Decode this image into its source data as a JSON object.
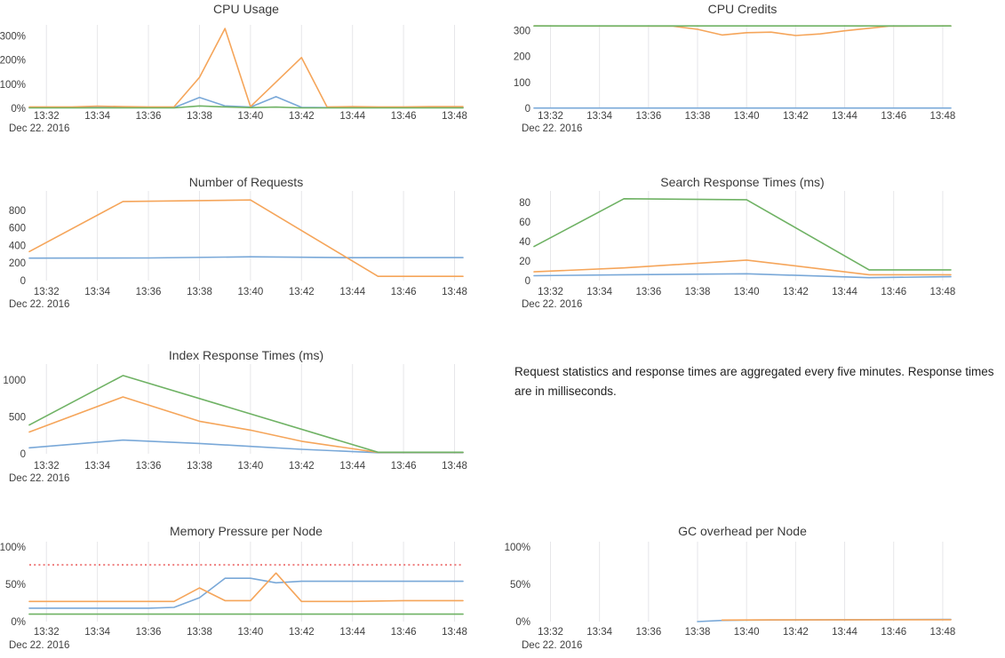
{
  "date_label": "Dec 22. 2016",
  "note": {
    "text": "Request statistics and response times are aggregated every five minutes. Response times are in milliseconds."
  },
  "palette": {
    "blue": "#79a8d8",
    "orange": "#f5a55a",
    "green": "#6fb264",
    "threshold": "#ee7d7d",
    "grid": "#e6e6e9",
    "tick_text": "#404040",
    "title_text": "#3a3a3a"
  },
  "x_axis": {
    "xlim": [
      31.33,
      48.33
    ],
    "ticks": [
      {
        "v": 32,
        "label": "13:32"
      },
      {
        "v": 34,
        "label": "13:34"
      },
      {
        "v": 36,
        "label": "13:36"
      },
      {
        "v": 38,
        "label": "13:38"
      },
      {
        "v": 40,
        "label": "13:40"
      },
      {
        "v": 42,
        "label": "13:42"
      },
      {
        "v": 44,
        "label": "13:44"
      },
      {
        "v": 46,
        "label": "13:46"
      },
      {
        "v": 48,
        "label": "13:48"
      }
    ]
  },
  "chart_data": [
    {
      "id": "cpu-usage",
      "type": "line",
      "title": "CPU Usage",
      "ylim": [
        0,
        345
      ],
      "yticks": [
        {
          "v": 0,
          "label": "0%"
        },
        {
          "v": 100,
          "label": "100%"
        },
        {
          "v": 200,
          "label": "200%"
        },
        {
          "v": 300,
          "label": "300%"
        }
      ],
      "series": [
        {
          "name": "node-blue",
          "color": "blue",
          "points": [
            [
              31.33,
              3
            ],
            [
              33,
              3
            ],
            [
              34,
              4
            ],
            [
              35,
              3
            ],
            [
              36,
              3
            ],
            [
              37,
              3
            ],
            [
              38,
              45
            ],
            [
              39,
              10
            ],
            [
              40,
              5
            ],
            [
              41,
              48
            ],
            [
              42,
              4
            ],
            [
              43,
              3
            ],
            [
              45,
              3
            ],
            [
              48.33,
              3
            ]
          ]
        },
        {
          "name": "node-orange",
          "color": "orange",
          "points": [
            [
              31.33,
              6
            ],
            [
              33,
              6
            ],
            [
              34,
              9
            ],
            [
              35,
              7
            ],
            [
              36,
              6
            ],
            [
              37,
              6
            ],
            [
              38,
              128
            ],
            [
              39,
              330
            ],
            [
              40,
              7
            ],
            [
              42,
              210
            ],
            [
              43,
              6
            ],
            [
              44,
              7
            ],
            [
              45,
              6
            ],
            [
              46,
              6
            ],
            [
              47,
              7
            ],
            [
              48.33,
              7
            ]
          ]
        },
        {
          "name": "node-green",
          "color": "green",
          "points": [
            [
              31.33,
              2
            ],
            [
              37,
              2
            ],
            [
              38,
              10
            ],
            [
              39,
              6
            ],
            [
              40,
              3
            ],
            [
              41,
              5
            ],
            [
              42,
              2
            ],
            [
              48.33,
              2
            ]
          ]
        }
      ]
    },
    {
      "id": "cpu-credits",
      "type": "line",
      "title": "CPU Credits",
      "ylim": [
        0,
        322
      ],
      "yticks": [
        {
          "v": 0,
          "label": "0"
        },
        {
          "v": 100,
          "label": "100"
        },
        {
          "v": 200,
          "label": "200"
        },
        {
          "v": 300,
          "label": "300"
        }
      ],
      "series": [
        {
          "name": "node-blue",
          "color": "blue",
          "points": [
            [
              31.33,
              1
            ],
            [
              48.33,
              1
            ]
          ]
        },
        {
          "name": "node-orange",
          "color": "orange",
          "points": [
            [
              31.33,
              318
            ],
            [
              37,
              317
            ],
            [
              38,
              305
            ],
            [
              39,
              283
            ],
            [
              40,
              292
            ],
            [
              41,
              294
            ],
            [
              42,
              281
            ],
            [
              43,
              287
            ],
            [
              44,
              299
            ],
            [
              45,
              309
            ],
            [
              45.8,
              317
            ],
            [
              48.33,
              318
            ]
          ]
        },
        {
          "name": "node-green",
          "color": "green",
          "points": [
            [
              31.33,
              318
            ],
            [
              48.33,
              318
            ]
          ]
        }
      ]
    },
    {
      "id": "requests",
      "type": "line",
      "title": "Number of Requests",
      "ylim": [
        0,
        1020
      ],
      "yticks": [
        {
          "v": 0,
          "label": "0"
        },
        {
          "v": 200,
          "label": "200"
        },
        {
          "v": 400,
          "label": "400"
        },
        {
          "v": 600,
          "label": "600"
        },
        {
          "v": 800,
          "label": "800"
        }
      ],
      "series": [
        {
          "name": "requests-blue",
          "color": "blue",
          "points": [
            [
              31.33,
              256
            ],
            [
              36,
              258
            ],
            [
              40,
              271
            ],
            [
              44,
              261
            ],
            [
              48.33,
              262
            ]
          ]
        },
        {
          "name": "requests-orange",
          "color": "orange",
          "points": [
            [
              31.33,
              330
            ],
            [
              35,
              900
            ],
            [
              40,
              917
            ],
            [
              45,
              48
            ],
            [
              48.33,
              48
            ]
          ]
        }
      ]
    },
    {
      "id": "search-response",
      "type": "line",
      "title": "Search Response Times (ms)",
      "ylim": [
        0,
        92
      ],
      "yticks": [
        {
          "v": 0,
          "label": "0"
        },
        {
          "v": 20,
          "label": "20"
        },
        {
          "v": 40,
          "label": "40"
        },
        {
          "v": 60,
          "label": "60"
        },
        {
          "v": 80,
          "label": "80"
        }
      ],
      "series": [
        {
          "name": "search-blue",
          "color": "blue",
          "points": [
            [
              31.33,
              5
            ],
            [
              35,
              6
            ],
            [
              40,
              7
            ],
            [
              45,
              3
            ],
            [
              48.33,
              4
            ]
          ]
        },
        {
          "name": "search-orange",
          "color": "orange",
          "points": [
            [
              31.33,
              9
            ],
            [
              35,
              13
            ],
            [
              40,
              21
            ],
            [
              45,
              6
            ],
            [
              48.33,
              6
            ]
          ]
        },
        {
          "name": "search-green",
          "color": "green",
          "points": [
            [
              31.33,
              35
            ],
            [
              35,
              84
            ],
            [
              40,
              83
            ],
            [
              45,
              11
            ],
            [
              48.33,
              11
            ]
          ]
        }
      ]
    },
    {
      "id": "index-response",
      "type": "line",
      "title": "Index Response Times (ms)",
      "ylim": [
        0,
        1215
      ],
      "yticks": [
        {
          "v": 0,
          "label": "0"
        },
        {
          "v": 500,
          "label": "500"
        },
        {
          "v": 1000,
          "label": "1000"
        }
      ],
      "series": [
        {
          "name": "index-blue",
          "color": "blue",
          "points": [
            [
              31.33,
              80
            ],
            [
              35,
              185
            ],
            [
              38,
              140
            ],
            [
              40,
              100
            ],
            [
              42,
              60
            ],
            [
              45,
              15
            ],
            [
              48.33,
              15
            ]
          ]
        },
        {
          "name": "index-orange",
          "color": "orange",
          "points": [
            [
              31.33,
              295
            ],
            [
              35,
              770
            ],
            [
              38,
              440
            ],
            [
              40,
              320
            ],
            [
              42,
              170
            ],
            [
              45,
              18
            ],
            [
              48.33,
              18
            ]
          ]
        },
        {
          "name": "index-green",
          "color": "green",
          "points": [
            [
              31.33,
              390
            ],
            [
              35,
              1060
            ],
            [
              45,
              20
            ],
            [
              48.33,
              20
            ]
          ]
        }
      ]
    },
    {
      "id": "memory-pressure",
      "type": "line",
      "title": "Memory Pressure per Node",
      "ylim": [
        0,
        107
      ],
      "yticks": [
        {
          "v": 0,
          "label": "0%"
        },
        {
          "v": 50,
          "label": "50%"
        },
        {
          "v": 100,
          "label": "100%"
        }
      ],
      "series": [
        {
          "name": "memory-blue",
          "color": "blue",
          "points": [
            [
              31.33,
              18
            ],
            [
              36,
              18
            ],
            [
              37,
              19
            ],
            [
              38,
              32
            ],
            [
              39,
              58
            ],
            [
              40,
              58
            ],
            [
              41,
              52
            ],
            [
              42,
              54
            ],
            [
              48.33,
              54
            ]
          ]
        },
        {
          "name": "memory-orange",
          "color": "orange",
          "points": [
            [
              31.33,
              27
            ],
            [
              37,
              27
            ],
            [
              38,
              45
            ],
            [
              39,
              28
            ],
            [
              40,
              28
            ],
            [
              41,
              65
            ],
            [
              42,
              27
            ],
            [
              44,
              27
            ],
            [
              46,
              28
            ],
            [
              48.33,
              28
            ]
          ]
        },
        {
          "name": "memory-green",
          "color": "green",
          "points": [
            [
              31.33,
              10
            ],
            [
              48.33,
              10
            ]
          ]
        },
        {
          "name": "memory-threshold",
          "color": "threshold",
          "style": "dotted",
          "points": [
            [
              31.33,
              76
            ],
            [
              48.33,
              76
            ]
          ]
        }
      ]
    },
    {
      "id": "gc-overhead",
      "type": "line",
      "title": "GC overhead per Node",
      "ylim": [
        0,
        107
      ],
      "yticks": [
        {
          "v": 0,
          "label": "0%"
        },
        {
          "v": 50,
          "label": "50%"
        },
        {
          "v": 100,
          "label": "100%"
        }
      ],
      "series": [
        {
          "name": "gc-blue",
          "color": "blue",
          "points": [
            [
              38,
              0
            ],
            [
              39,
              1.5
            ],
            [
              40,
              2
            ],
            [
              44,
              2.5
            ],
            [
              48.33,
              3
            ]
          ]
        },
        {
          "name": "gc-orange",
          "color": "orange",
          "points": [
            [
              39,
              2
            ],
            [
              41,
              2.3
            ],
            [
              48.33,
              2.5
            ]
          ]
        }
      ]
    }
  ]
}
